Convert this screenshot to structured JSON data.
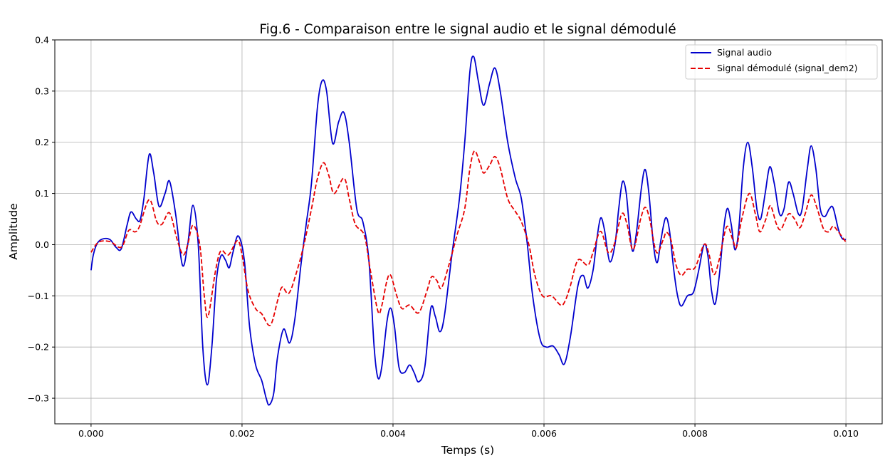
{
  "chart_data": {
    "type": "line",
    "title": "Fig.6 - Comparaison entre le signal audio et le signal démodulé",
    "xlabel": "Temps (s)",
    "ylabel": "Amplitude",
    "xlim": [
      -0.00048,
      0.01048
    ],
    "ylim": [
      -0.35,
      0.4
    ],
    "xticks": [
      0.0,
      0.002,
      0.004,
      0.006,
      0.008,
      0.01
    ],
    "xtick_labels": [
      "0.000",
      "0.002",
      "0.004",
      "0.006",
      "0.008",
      "0.010"
    ],
    "yticks": [
      -0.3,
      -0.2,
      -0.1,
      0.0,
      0.1,
      0.2,
      0.3,
      0.4
    ],
    "ytick_labels": [
      "−0.3",
      "−0.2",
      "−0.1",
      "0.0",
      "0.1",
      "0.2",
      "0.3",
      "0.4"
    ],
    "grid": true,
    "legend_position": "top-right",
    "series": [
      {
        "name": "Signal audio",
        "color": "#0000cd",
        "style": "solid",
        "points": [
          [
            0.0,
            -0.05
          ],
          [
            3e-05,
            -0.02
          ],
          [
            8e-05,
            0.002
          ],
          [
            0.00015,
            0.011
          ],
          [
            0.00025,
            0.01
          ],
          [
            0.00033,
            -0.005
          ],
          [
            0.0004,
            -0.008
          ],
          [
            0.00048,
            0.04
          ],
          [
            0.00053,
            0.064
          ],
          [
            0.0006,
            0.05
          ],
          [
            0.00065,
            0.048
          ],
          [
            0.0007,
            0.09
          ],
          [
            0.00077,
            0.176
          ],
          [
            0.00083,
            0.14
          ],
          [
            0.0009,
            0.075
          ],
          [
            0.00098,
            0.1
          ],
          [
            0.00104,
            0.124
          ],
          [
            0.00112,
            0.06
          ],
          [
            0.00121,
            -0.04
          ],
          [
            0.00128,
            0.0
          ],
          [
            0.00135,
            0.077
          ],
          [
            0.00142,
            0.0
          ],
          [
            0.00148,
            -0.2
          ],
          [
            0.00154,
            -0.274
          ],
          [
            0.0016,
            -0.2
          ],
          [
            0.00166,
            -0.07
          ],
          [
            0.00172,
            -0.022
          ],
          [
            0.00178,
            -0.03
          ],
          [
            0.00183,
            -0.045
          ],
          [
            0.00188,
            -0.015
          ],
          [
            0.00195,
            0.017
          ],
          [
            0.00203,
            -0.03
          ],
          [
            0.0021,
            -0.16
          ],
          [
            0.00218,
            -0.235
          ],
          [
            0.00226,
            -0.265
          ],
          [
            0.00232,
            -0.3
          ],
          [
            0.00236,
            -0.313
          ],
          [
            0.00242,
            -0.29
          ],
          [
            0.00247,
            -0.22
          ],
          [
            0.00255,
            -0.165
          ],
          [
            0.00263,
            -0.192
          ],
          [
            0.0027,
            -0.145
          ],
          [
            0.00278,
            -0.04
          ],
          [
            0.00285,
            0.04
          ],
          [
            0.00292,
            0.12
          ],
          [
            0.003,
            0.27
          ],
          [
            0.00306,
            0.32
          ],
          [
            0.00312,
            0.3
          ],
          [
            0.0032,
            0.198
          ],
          [
            0.00328,
            0.24
          ],
          [
            0.00335,
            0.258
          ],
          [
            0.00342,
            0.2
          ],
          [
            0.00352,
            0.07
          ],
          [
            0.0036,
            0.045
          ],
          [
            0.00368,
            -0.03
          ],
          [
            0.00375,
            -0.2
          ],
          [
            0.0038,
            -0.26
          ],
          [
            0.00385,
            -0.24
          ],
          [
            0.00392,
            -0.15
          ],
          [
            0.00397,
            -0.124
          ],
          [
            0.00402,
            -0.16
          ],
          [
            0.00408,
            -0.24
          ],
          [
            0.00415,
            -0.25
          ],
          [
            0.00422,
            -0.235
          ],
          [
            0.00428,
            -0.25
          ],
          [
            0.00434,
            -0.268
          ],
          [
            0.00442,
            -0.24
          ],
          [
            0.0045,
            -0.125
          ],
          [
            0.00456,
            -0.14
          ],
          [
            0.00462,
            -0.17
          ],
          [
            0.00468,
            -0.14
          ],
          [
            0.00478,
            -0.02
          ],
          [
            0.00488,
            0.09
          ],
          [
            0.00495,
            0.2
          ],
          [
            0.00502,
            0.34
          ],
          [
            0.00507,
            0.367
          ],
          [
            0.00513,
            0.32
          ],
          [
            0.0052,
            0.272
          ],
          [
            0.00528,
            0.315
          ],
          [
            0.00535,
            0.345
          ],
          [
            0.00542,
            0.3
          ],
          [
            0.00552,
            0.2
          ],
          [
            0.00562,
            0.13
          ],
          [
            0.0057,
            0.09
          ],
          [
            0.00578,
            0.0
          ],
          [
            0.00585,
            -0.1
          ],
          [
            0.00595,
            -0.185
          ],
          [
            0.00603,
            -0.2
          ],
          [
            0.00612,
            -0.198
          ],
          [
            0.0062,
            -0.215
          ],
          [
            0.00627,
            -0.233
          ],
          [
            0.00635,
            -0.18
          ],
          [
            0.00645,
            -0.08
          ],
          [
            0.00652,
            -0.06
          ],
          [
            0.00658,
            -0.085
          ],
          [
            0.00665,
            -0.05
          ],
          [
            0.0067,
            0.01
          ],
          [
            0.00675,
            0.052
          ],
          [
            0.0068,
            0.03
          ],
          [
            0.00687,
            -0.033
          ],
          [
            0.00694,
            0.0
          ],
          [
            0.00699,
            0.07
          ],
          [
            0.00704,
            0.123
          ],
          [
            0.00709,
            0.1
          ],
          [
            0.00714,
            0.02
          ],
          [
            0.00718,
            -0.013
          ],
          [
            0.00723,
            0.03
          ],
          [
            0.00729,
            0.11
          ],
          [
            0.00734,
            0.147
          ],
          [
            0.00739,
            0.1
          ],
          [
            0.00745,
            0.0
          ],
          [
            0.0075,
            -0.035
          ],
          [
            0.00755,
            0.01
          ],
          [
            0.00761,
            0.052
          ],
          [
            0.00766,
            0.03
          ],
          [
            0.00772,
            -0.05
          ],
          [
            0.00777,
            -0.1
          ],
          [
            0.00782,
            -0.12
          ],
          [
            0.0079,
            -0.1
          ],
          [
            0.00798,
            -0.093
          ],
          [
            0.00805,
            -0.05
          ],
          [
            0.00812,
            0.0
          ],
          [
            0.00817,
            -0.02
          ],
          [
            0.00822,
            -0.09
          ],
          [
            0.00827,
            -0.115
          ],
          [
            0.00833,
            -0.05
          ],
          [
            0.00838,
            0.03
          ],
          [
            0.00843,
            0.071
          ],
          [
            0.00848,
            0.04
          ],
          [
            0.00853,
            -0.01
          ],
          [
            0.00858,
            0.03
          ],
          [
            0.00864,
            0.15
          ],
          [
            0.0087,
            0.2
          ],
          [
            0.00876,
            0.15
          ],
          [
            0.00882,
            0.07
          ],
          [
            0.00887,
            0.05
          ],
          [
            0.00893,
            0.1
          ],
          [
            0.00899,
            0.152
          ],
          [
            0.00905,
            0.12
          ],
          [
            0.00912,
            0.06
          ],
          [
            0.00918,
            0.07
          ],
          [
            0.00924,
            0.122
          ],
          [
            0.0093,
            0.1
          ],
          [
            0.00937,
            0.06
          ],
          [
            0.00942,
            0.07
          ],
          [
            0.00949,
            0.15
          ],
          [
            0.00954,
            0.193
          ],
          [
            0.0096,
            0.15
          ],
          [
            0.00966,
            0.07
          ],
          [
            0.00972,
            0.055
          ],
          [
            0.00978,
            0.07
          ],
          [
            0.00983,
            0.072
          ],
          [
            0.0099,
            0.03
          ],
          [
            0.00995,
            0.012
          ],
          [
            0.01,
            0.01
          ]
        ]
      },
      {
        "name": "Signal démodulé (signal_dem2)",
        "color": "#e60000",
        "style": "dashed",
        "points": [
          [
            0.0,
            -0.015
          ],
          [
            0.0001,
            0.005
          ],
          [
            0.00025,
            0.006
          ],
          [
            0.0004,
            -0.005
          ],
          [
            0.0005,
            0.028
          ],
          [
            0.00058,
            0.025
          ],
          [
            0.00064,
            0.035
          ],
          [
            0.00077,
            0.088
          ],
          [
            0.00087,
            0.045
          ],
          [
            0.00094,
            0.04
          ],
          [
            0.00104,
            0.062
          ],
          [
            0.00114,
            0.01
          ],
          [
            0.00122,
            -0.02
          ],
          [
            0.00128,
            0.0
          ],
          [
            0.00135,
            0.038
          ],
          [
            0.00144,
            0.0
          ],
          [
            0.0015,
            -0.1
          ],
          [
            0.00155,
            -0.14
          ],
          [
            0.00165,
            -0.05
          ],
          [
            0.00172,
            -0.012
          ],
          [
            0.00182,
            -0.02
          ],
          [
            0.00194,
            0.008
          ],
          [
            0.002,
            -0.02
          ],
          [
            0.00208,
            -0.09
          ],
          [
            0.00218,
            -0.125
          ],
          [
            0.00226,
            -0.135
          ],
          [
            0.00235,
            -0.157
          ],
          [
            0.0024,
            -0.15
          ],
          [
            0.00247,
            -0.11
          ],
          [
            0.00253,
            -0.083
          ],
          [
            0.00262,
            -0.095
          ],
          [
            0.00272,
            -0.055
          ],
          [
            0.00282,
            0.0
          ],
          [
            0.00292,
            0.07
          ],
          [
            0.003,
            0.13
          ],
          [
            0.00308,
            0.16
          ],
          [
            0.00315,
            0.135
          ],
          [
            0.00322,
            0.1
          ],
          [
            0.00335,
            0.13
          ],
          [
            0.00342,
            0.09
          ],
          [
            0.0035,
            0.04
          ],
          [
            0.00362,
            0.018
          ],
          [
            0.0037,
            -0.05
          ],
          [
            0.0038,
            -0.13
          ],
          [
            0.00385,
            -0.12
          ],
          [
            0.00392,
            -0.07
          ],
          [
            0.00397,
            -0.06
          ],
          [
            0.00405,
            -0.1
          ],
          [
            0.00412,
            -0.125
          ],
          [
            0.00422,
            -0.118
          ],
          [
            0.00434,
            -0.133
          ],
          [
            0.00445,
            -0.09
          ],
          [
            0.00451,
            -0.063
          ],
          [
            0.00458,
            -0.07
          ],
          [
            0.00464,
            -0.085
          ],
          [
            0.00474,
            -0.04
          ],
          [
            0.00485,
            0.02
          ],
          [
            0.00495,
            0.07
          ],
          [
            0.00502,
            0.15
          ],
          [
            0.00508,
            0.183
          ],
          [
            0.00515,
            0.16
          ],
          [
            0.0052,
            0.14
          ],
          [
            0.00528,
            0.155
          ],
          [
            0.00535,
            0.172
          ],
          [
            0.00542,
            0.15
          ],
          [
            0.00552,
            0.09
          ],
          [
            0.00562,
            0.065
          ],
          [
            0.0057,
            0.045
          ],
          [
            0.0058,
            0.0
          ],
          [
            0.00588,
            -0.06
          ],
          [
            0.00598,
            -0.1
          ],
          [
            0.0061,
            -0.1
          ],
          [
            0.00622,
            -0.118
          ],
          [
            0.00628,
            -0.11
          ],
          [
            0.00635,
            -0.08
          ],
          [
            0.00645,
            -0.03
          ],
          [
            0.00658,
            -0.04
          ],
          [
            0.00665,
            -0.015
          ],
          [
            0.00675,
            0.026
          ],
          [
            0.00685,
            -0.015
          ],
          [
            0.00693,
            0.0
          ],
          [
            0.00703,
            0.06
          ],
          [
            0.0071,
            0.04
          ],
          [
            0.00718,
            -0.01
          ],
          [
            0.00728,
            0.05
          ],
          [
            0.00734,
            0.073
          ],
          [
            0.0074,
            0.05
          ],
          [
            0.00749,
            -0.015
          ],
          [
            0.00758,
            0.01
          ],
          [
            0.00762,
            0.024
          ],
          [
            0.00768,
            0.01
          ],
          [
            0.00775,
            -0.04
          ],
          [
            0.00782,
            -0.06
          ],
          [
            0.0079,
            -0.048
          ],
          [
            0.008,
            -0.045
          ],
          [
            0.00812,
            0.0
          ],
          [
            0.00818,
            -0.015
          ],
          [
            0.00825,
            -0.058
          ],
          [
            0.00832,
            -0.03
          ],
          [
            0.00842,
            0.035
          ],
          [
            0.0085,
            0.01
          ],
          [
            0.00855,
            -0.005
          ],
          [
            0.00862,
            0.05
          ],
          [
            0.00872,
            0.1
          ],
          [
            0.0088,
            0.06
          ],
          [
            0.00886,
            0.025
          ],
          [
            0.00894,
            0.05
          ],
          [
            0.009,
            0.076
          ],
          [
            0.00908,
            0.04
          ],
          [
            0.00914,
            0.03
          ],
          [
            0.00924,
            0.06
          ],
          [
            0.00932,
            0.05
          ],
          [
            0.00939,
            0.033
          ],
          [
            0.00946,
            0.06
          ],
          [
            0.00954,
            0.097
          ],
          [
            0.00962,
            0.07
          ],
          [
            0.0097,
            0.032
          ],
          [
            0.00977,
            0.025
          ],
          [
            0.00983,
            0.036
          ],
          [
            0.0099,
            0.025
          ],
          [
            0.01,
            0.005
          ]
        ]
      }
    ]
  }
}
